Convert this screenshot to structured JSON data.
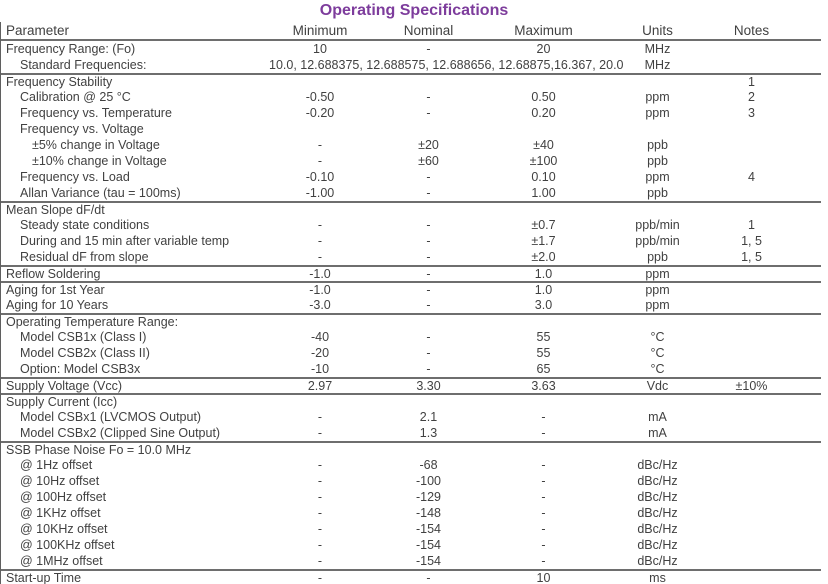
{
  "title": "Operating Specifications",
  "accent_color": "#7d3c9c",
  "columns": {
    "parameter": "Parameter",
    "minimum": "Minimum",
    "nominal": "Nominal",
    "maximum": "Maximum",
    "units": "Units",
    "notes": "Notes"
  },
  "rows": [
    {
      "param": "Frequency Range: (Fo)",
      "indent": 0,
      "min": "10",
      "nom": "-",
      "max": "20",
      "units": "MHz",
      "notes": "",
      "section_start": false
    },
    {
      "param": "Standard Frequencies:",
      "indent": 1,
      "span_value": "10.0, 12.688375, 12.688575, 12.688656, 12.68875,16.367, 20.0",
      "units": "MHz",
      "notes": "",
      "section_start": false
    },
    {
      "param": "Frequency Stability",
      "indent": 0,
      "min": "",
      "nom": "",
      "max": "",
      "units": "",
      "notes": "1",
      "section_start": true
    },
    {
      "param": "Calibration @ 25 °C",
      "indent": 1,
      "min": "-0.50",
      "nom": "-",
      "max": "0.50",
      "units": "ppm",
      "notes": "2",
      "section_start": false
    },
    {
      "param": "Frequency vs. Temperature",
      "indent": 1,
      "min": "-0.20",
      "nom": "-",
      "max": "0.20",
      "units": "ppm",
      "notes": "3",
      "section_start": false
    },
    {
      "param": "Frequency vs. Voltage",
      "indent": 1,
      "min": "",
      "nom": "",
      "max": "",
      "units": "",
      "notes": "",
      "section_start": false
    },
    {
      "param": "±5% change in Voltage",
      "indent": 2,
      "min": "-",
      "nom": "±20",
      "max": "±40",
      "units": "ppb",
      "notes": "",
      "section_start": false
    },
    {
      "param": "±10% change in Voltage",
      "indent": 2,
      "min": "-",
      "nom": "±60",
      "max": "±100",
      "units": "ppb",
      "notes": "",
      "section_start": false
    },
    {
      "param": "Frequency vs. Load",
      "indent": 1,
      "min": "-0.10",
      "nom": "-",
      "max": "0.10",
      "units": "ppm",
      "notes": "4",
      "section_start": false
    },
    {
      "param": "Allan Variance (tau = 100ms)",
      "indent": 1,
      "min": "-1.00",
      "nom": "-",
      "max": "1.00",
      "units": "ppb",
      "notes": "",
      "section_start": false
    },
    {
      "param": "Mean Slope dF/dt",
      "indent": 0,
      "min": "",
      "nom": "",
      "max": "",
      "units": "",
      "notes": "",
      "section_start": true
    },
    {
      "param": "Steady state conditions",
      "indent": 1,
      "min": "-",
      "nom": "-",
      "max": "±0.7",
      "units": "ppb/min",
      "notes": "1",
      "section_start": false
    },
    {
      "param": "During and 15 min after variable temp",
      "indent": 1,
      "min": "-",
      "nom": "-",
      "max": "±1.7",
      "units": "ppb/min",
      "notes": "1, 5",
      "section_start": false
    },
    {
      "param": "Residual dF from slope",
      "indent": 1,
      "min": "-",
      "nom": "-",
      "max": "±2.0",
      "units": "ppb",
      "notes": "1, 5",
      "section_start": false
    },
    {
      "param": "Reflow Soldering",
      "indent": 0,
      "min": "-1.0",
      "nom": "-",
      "max": "1.0",
      "units": "ppm",
      "notes": "",
      "section_start": true
    },
    {
      "param": "Aging for 1st Year",
      "indent": 0,
      "min": "-1.0",
      "nom": "-",
      "max": "1.0",
      "units": "ppm",
      "notes": "",
      "section_start": true
    },
    {
      "param": "Aging for 10 Years",
      "indent": 0,
      "min": "-3.0",
      "nom": "-",
      "max": "3.0",
      "units": "ppm",
      "notes": "",
      "section_start": false
    },
    {
      "param": "Operating Temperature Range:",
      "indent": 0,
      "min": "",
      "nom": "",
      "max": "",
      "units": "",
      "notes": "",
      "section_start": true
    },
    {
      "param": "Model CSB1x (Class I)",
      "indent": 1,
      "min": "-40",
      "nom": "-",
      "max": "55",
      "units": "°C",
      "notes": "",
      "section_start": false
    },
    {
      "param": "Model CSB2x (Class II)",
      "indent": 1,
      "min": "-20",
      "nom": "-",
      "max": "55",
      "units": "°C",
      "notes": "",
      "section_start": false
    },
    {
      "param": "Option: Model CSB3x",
      "indent": 1,
      "min": "-10",
      "nom": "-",
      "max": "65",
      "units": "°C",
      "notes": "",
      "section_start": false
    },
    {
      "param": "Supply Voltage (Vcc)",
      "indent": 0,
      "min": "2.97",
      "nom": "3.30",
      "max": "3.63",
      "units": "Vdc",
      "notes": "±10%",
      "section_start": true
    },
    {
      "param": "Supply Current (Icc)",
      "indent": 0,
      "min": "",
      "nom": "",
      "max": "",
      "units": "",
      "notes": "",
      "section_start": true
    },
    {
      "param": "Model CSBx1 (LVCMOS Output)",
      "indent": 1,
      "min": "-",
      "nom": "2.1",
      "max": "-",
      "units": "mA",
      "notes": "",
      "section_start": false
    },
    {
      "param": "Model CSBx2 (Clipped Sine Output)",
      "indent": 1,
      "min": "-",
      "nom": "1.3",
      "max": "-",
      "units": "mA",
      "notes": "",
      "section_start": false
    },
    {
      "param": "SSB Phase Noise Fo = 10.0 MHz",
      "indent": 0,
      "min": "",
      "nom": "",
      "max": "",
      "units": "",
      "notes": "",
      "section_start": true
    },
    {
      "param": "@ 1Hz offset",
      "indent": 1,
      "min": "-",
      "nom": "-68",
      "max": "-",
      "units": "dBc/Hz",
      "notes": "",
      "section_start": false
    },
    {
      "param": "@ 10Hz offset",
      "indent": 1,
      "min": "-",
      "nom": "-100",
      "max": "-",
      "units": "dBc/Hz",
      "notes": "",
      "section_start": false
    },
    {
      "param": "@ 100Hz offset",
      "indent": 1,
      "min": "-",
      "nom": "-129",
      "max": "-",
      "units": "dBc/Hz",
      "notes": "",
      "section_start": false
    },
    {
      "param": "@ 1KHz offset",
      "indent": 1,
      "min": "-",
      "nom": "-148",
      "max": "-",
      "units": "dBc/Hz",
      "notes": "",
      "section_start": false
    },
    {
      "param": "@ 10KHz offset",
      "indent": 1,
      "min": "-",
      "nom": "-154",
      "max": "-",
      "units": "dBc/Hz",
      "notes": "",
      "section_start": false
    },
    {
      "param": "@ 100KHz offset",
      "indent": 1,
      "min": "-",
      "nom": "-154",
      "max": "-",
      "units": "dBc/Hz",
      "notes": "",
      "section_start": false
    },
    {
      "param": "@ 1MHz offset",
      "indent": 1,
      "min": "-",
      "nom": "-154",
      "max": "-",
      "units": "dBc/Hz",
      "notes": "",
      "section_start": false
    },
    {
      "param": "Start-up Time",
      "indent": 0,
      "min": "-",
      "nom": "-",
      "max": "10",
      "units": "ms",
      "notes": "",
      "section_start": true
    }
  ]
}
